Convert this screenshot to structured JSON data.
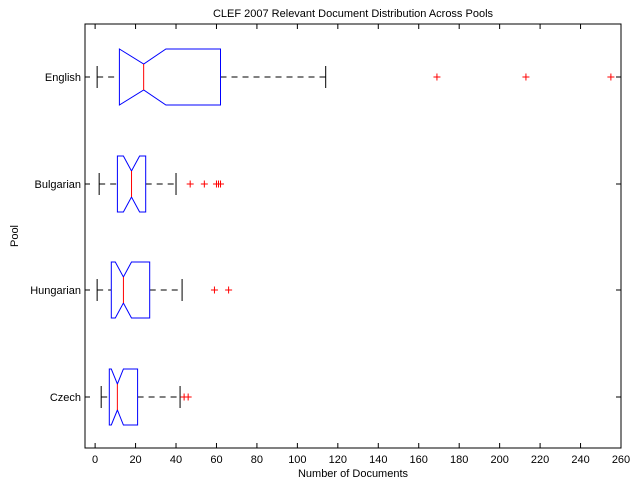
{
  "chart_data": {
    "type": "boxplot",
    "orientation": "horizontal",
    "notched": true,
    "title": "CLEF 2007 Relevant Document Distribution Across Pools",
    "xlabel": "Number of Documents",
    "ylabel": "Pool",
    "xlim": [
      -5,
      260
    ],
    "xticks": [
      0,
      20,
      40,
      60,
      80,
      100,
      120,
      140,
      160,
      180,
      200,
      220,
      240,
      260
    ],
    "grid": false,
    "colors": {
      "box": "#0000ff",
      "median": "#ff0000",
      "whisker": "#000000",
      "outlier": "#ff0000"
    },
    "series": [
      {
        "category": "English",
        "whisker_low": 1,
        "q1": 12,
        "median": 24,
        "q3": 62,
        "notch_low": 12,
        "notch_high": 35,
        "whisker_high": 114,
        "outliers": [
          169,
          213,
          255
        ]
      },
      {
        "category": "Bulgarian",
        "whisker_low": 2,
        "q1": 11,
        "median": 18,
        "q3": 25,
        "notch_low": 14,
        "notch_high": 22,
        "whisker_high": 40,
        "outliers": [
          47,
          54,
          60,
          61,
          62
        ]
      },
      {
        "category": "Hungarian",
        "whisker_low": 1,
        "q1": 8,
        "median": 14,
        "q3": 27,
        "notch_low": 10,
        "notch_high": 18,
        "whisker_high": 43,
        "outliers": [
          59,
          66
        ]
      },
      {
        "category": "Czech",
        "whisker_low": 3,
        "q1": 7,
        "median": 11,
        "q3": 21,
        "notch_low": 8,
        "notch_high": 14,
        "whisker_high": 42,
        "outliers": [
          44,
          46
        ]
      }
    ]
  }
}
